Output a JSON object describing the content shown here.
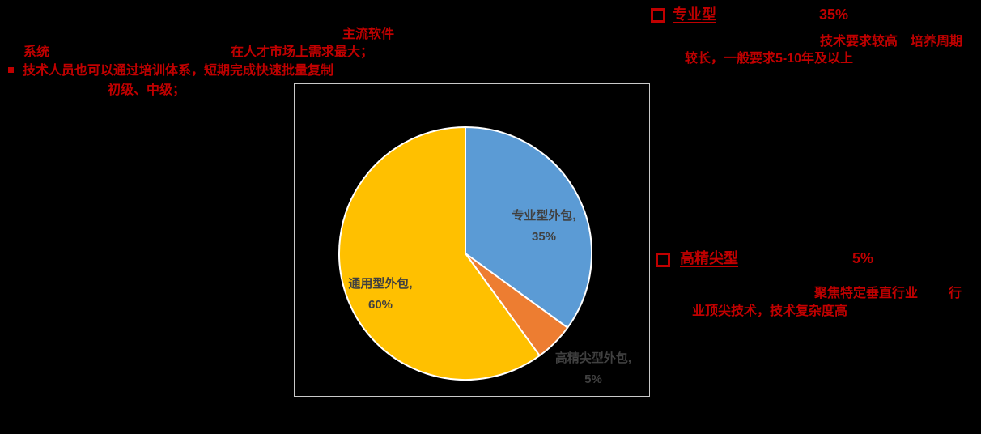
{
  "colors": {
    "background": "#000000",
    "accent_red": "#C00000",
    "box_border": "#C9C9C9",
    "pie_label_text": "#404040",
    "slice_border": "#FFFFFF"
  },
  "annotations": {
    "top_label": "主流软件",
    "line_system": "系统",
    "line_market": "在人才市场上需求最大；",
    "bullet_line": "技术人员也可以通过培训体系，短期完成快速批量复制",
    "line_levels": "初级、中级；"
  },
  "sections": {
    "professional": {
      "title": "专业型",
      "value": "35%",
      "desc_line1": "技术要求较高　培养周期",
      "desc_line2": "较长，一般要求5-10年及以上"
    },
    "high_end": {
      "title": "高精尖型",
      "value": "5%",
      "desc_line1": "聚焦特定垂直行业",
      "desc_line1_tail": "行",
      "desc_line2": "业顶尖技术，技术复杂度高"
    }
  },
  "chart_data": {
    "type": "pie",
    "title": "",
    "categories": [
      "专业型外包",
      "高精尖型外包",
      "通用型外包"
    ],
    "values": [
      35,
      5,
      60
    ],
    "colors": [
      "#5B9BD5",
      "#ED7D31",
      "#FFC000"
    ],
    "start_angle_deg_from_top": 0,
    "direction": "clockwise",
    "slice_border_color": "#FFFFFF",
    "legend": "none",
    "labels": [
      {
        "line1": "专业型外包,",
        "line2": "35%"
      },
      {
        "line1": "高精尖型外包,",
        "line2": "5%"
      },
      {
        "line1": "通用型外包,",
        "line2": "60%"
      }
    ]
  }
}
